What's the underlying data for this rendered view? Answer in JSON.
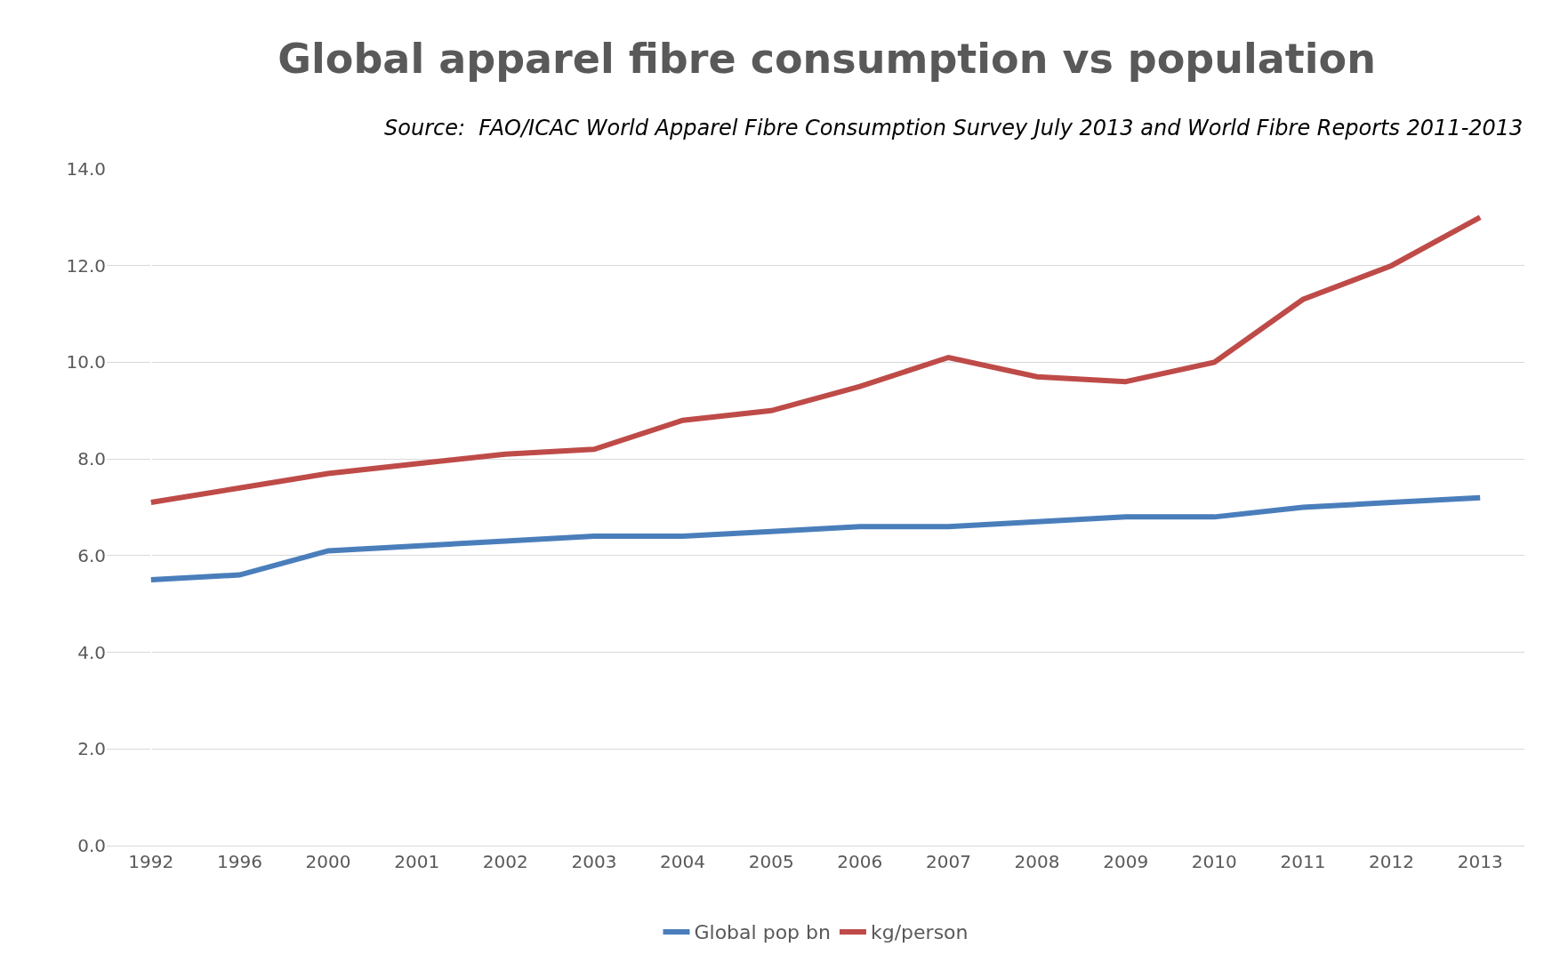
{
  "chart_data": {
    "type": "line",
    "title": "Global apparel fibre consumption vs population",
    "annotations": [
      "Source:  FAO/ICAC World Apparel Fibre Consumption Survey July 2013 and World Fibre Reports 2011-2013"
    ],
    "categories": [
      "1992",
      "1996",
      "2000",
      "2001",
      "2002",
      "2003",
      "2004",
      "2005",
      "2006",
      "2007",
      "2008",
      "2009",
      "2010",
      "2011",
      "2012",
      "2013"
    ],
    "series": [
      {
        "name": "Global pop bn",
        "color": "#4a7ebb",
        "values": [
          5.5,
          5.6,
          6.1,
          6.2,
          6.3,
          6.4,
          6.4,
          6.5,
          6.6,
          6.6,
          6.7,
          6.8,
          6.8,
          7.0,
          7.1,
          7.2
        ]
      },
      {
        "name": "kg/person",
        "color": "#be4b48",
        "values": [
          7.1,
          7.4,
          7.7,
          7.9,
          8.1,
          8.2,
          8.8,
          9.0,
          9.5,
          10.1,
          9.7,
          9.6,
          10.0,
          11.3,
          12.0,
          13.0
        ]
      }
    ],
    "ylim": [
      0,
      14
    ],
    "yticks": [
      {
        "value": 0,
        "label": "0.0"
      },
      {
        "value": 2,
        "label": "2.0"
      },
      {
        "value": 4,
        "label": "4.0"
      },
      {
        "value": 6,
        "label": "6.0"
      },
      {
        "value": 8,
        "label": "8.0"
      },
      {
        "value": 10,
        "label": "10.0"
      },
      {
        "value": 12,
        "label": "12.0"
      },
      {
        "value": 14,
        "label": "14.0"
      }
    ],
    "grid": "y",
    "legend": "bottom",
    "marker": "none",
    "line_style": "solid"
  }
}
